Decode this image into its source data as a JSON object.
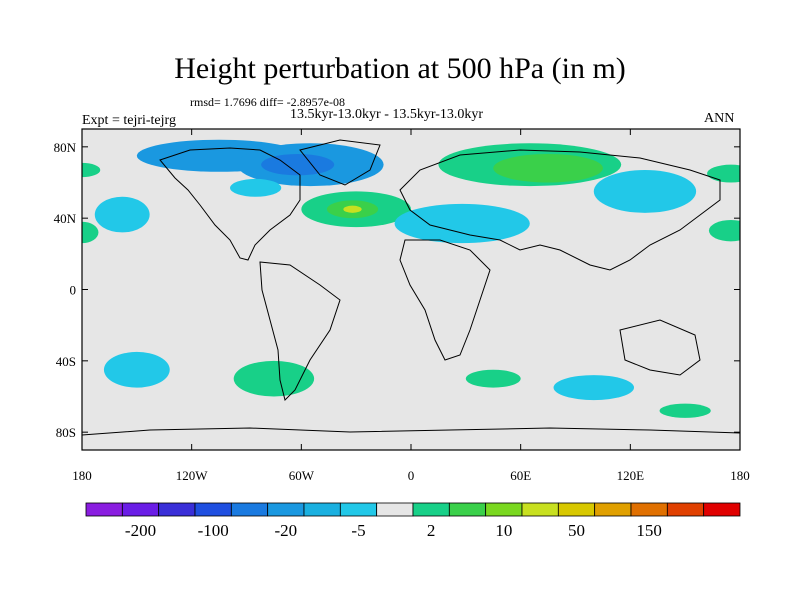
{
  "title": "Height perturbation at 500 hPa (in m)",
  "stats": "rmsd= 1.7696 diff= -2.8957e-08",
  "subtitle": "13.5kyr-13.0kyr - 13.5kyr-13.0kyr",
  "left_label": "Expt = tejri-tejrg",
  "right_label": "ANN",
  "lat_ticks": [
    "80N",
    "40N",
    "0",
    "40S",
    "80S"
  ],
  "lat_values": [
    80,
    40,
    0,
    -40,
    -80
  ],
  "lon_ticks": [
    "180",
    "120W",
    "60W",
    "0",
    "60E",
    "120E",
    "180"
  ],
  "lon_values": [
    -180,
    -120,
    -60,
    0,
    60,
    120,
    180
  ],
  "map_extent": {
    "lon": [
      -180,
      180
    ],
    "lat": [
      -90,
      90
    ]
  },
  "colors": {
    "land_background": "#e6e6e6",
    "scale": [
      "#8a1de0",
      "#6a1de6",
      "#3a2fd8",
      "#1f4fe0",
      "#1a7ae0",
      "#1a98e0",
      "#1ab0e0",
      "#22c8e8",
      "#e6e6e6",
      "#18d088",
      "#3ad04a",
      "#7ad820",
      "#c8e020",
      "#d8c800",
      "#e0a000",
      "#e07000",
      "#e04000",
      "#e00000"
    ]
  },
  "colorbar_labels": [
    "-200",
    "-100",
    "-20",
    "-5",
    "2",
    "10",
    "50",
    "150"
  ],
  "anomalies": [
    {
      "lon": -105,
      "lat": 75,
      "rlon": 45,
      "rlat": 9,
      "level": "blue"
    },
    {
      "lon": -55,
      "lat": 70,
      "rlon": 40,
      "rlat": 12,
      "level": "blue"
    },
    {
      "lon": -62,
      "lat": 70,
      "rlon": 20,
      "rlat": 6,
      "level": "blue-dark"
    },
    {
      "lon": -85,
      "lat": 57,
      "rlon": 14,
      "rlat": 5,
      "level": "cyan"
    },
    {
      "lon": -158,
      "lat": 42,
      "rlon": 15,
      "rlat": 10,
      "level": "cyan"
    },
    {
      "lon": -30,
      "lat": 45,
      "rlon": 30,
      "rlat": 10,
      "level": "green"
    },
    {
      "lon": -32,
      "lat": 45,
      "rlon": 14,
      "rlat": 5,
      "level": "green-dark"
    },
    {
      "lon": -32,
      "lat": 45,
      "rlon": 5,
      "rlat": 2,
      "level": "yellow-green"
    },
    {
      "lon": 28,
      "lat": 37,
      "rlon": 37,
      "rlat": 11,
      "level": "cyan"
    },
    {
      "lon": 65,
      "lat": 70,
      "rlon": 50,
      "rlat": 12,
      "level": "green"
    },
    {
      "lon": 75,
      "lat": 68,
      "rlon": 30,
      "rlat": 8,
      "level": "green-dark"
    },
    {
      "lon": 128,
      "lat": 55,
      "rlon": 28,
      "rlat": 12,
      "level": "cyan"
    },
    {
      "lon": 175,
      "lat": 65,
      "rlon": 13,
      "rlat": 5,
      "level": "green"
    },
    {
      "lon": -180,
      "lat": 67,
      "rlon": 10,
      "rlat": 4,
      "level": "green"
    },
    {
      "lon": 175,
      "lat": 33,
      "rlon": 12,
      "rlat": 6,
      "level": "green"
    },
    {
      "lon": -180,
      "lat": 32,
      "rlon": 9,
      "rlat": 6,
      "level": "green"
    },
    {
      "lon": -150,
      "lat": -45,
      "rlon": 18,
      "rlat": 10,
      "level": "cyan"
    },
    {
      "lon": -75,
      "lat": -50,
      "rlon": 22,
      "rlat": 10,
      "level": "green"
    },
    {
      "lon": 45,
      "lat": -50,
      "rlon": 15,
      "rlat": 5,
      "level": "green"
    },
    {
      "lon": 100,
      "lat": -55,
      "rlon": 22,
      "rlat": 7,
      "level": "cyan"
    },
    {
      "lon": 150,
      "lat": -68,
      "rlon": 14,
      "rlat": 4,
      "level": "green"
    }
  ]
}
